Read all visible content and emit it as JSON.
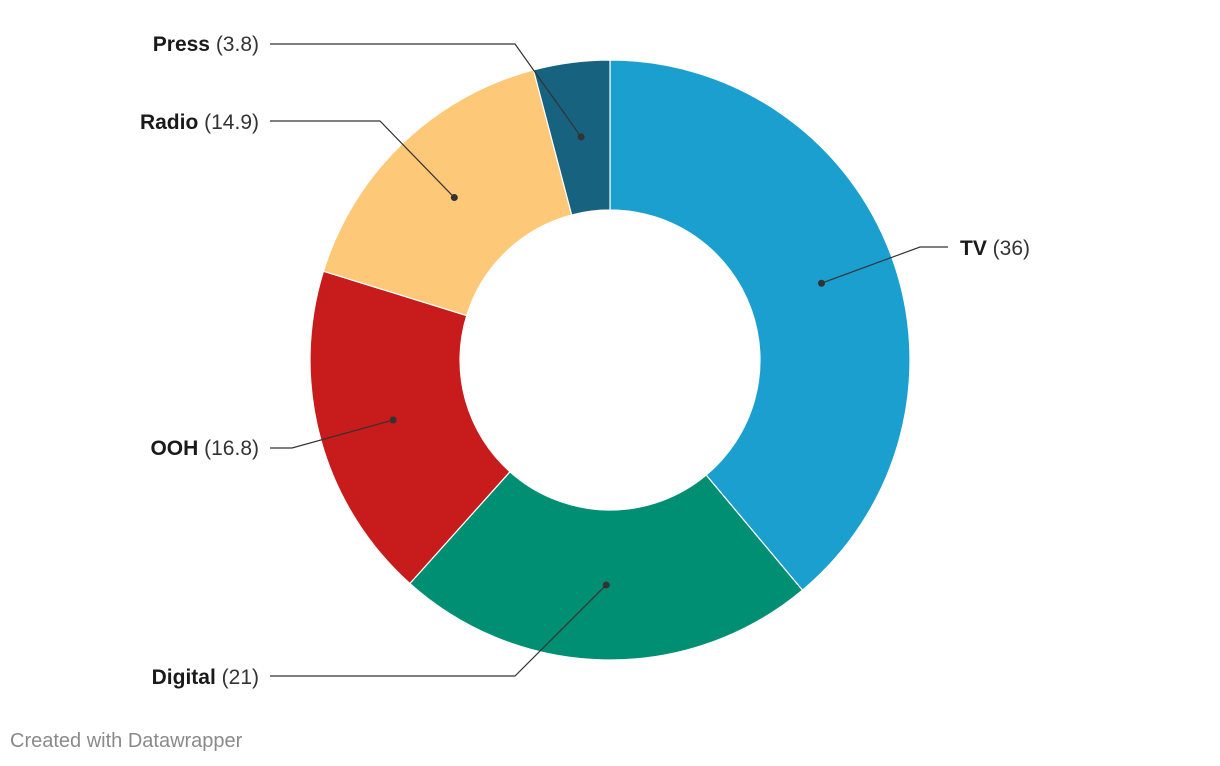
{
  "chart_data": {
    "type": "pie",
    "variant": "donut",
    "slices": [
      {
        "label": "TV",
        "value": 36,
        "color": "#1a9fcf"
      },
      {
        "label": "Digital",
        "value": 21,
        "color": "#008f72"
      },
      {
        "label": "OOH",
        "value": 16.8,
        "color": "#c81b1c"
      },
      {
        "label": "Radio",
        "value": 14.9,
        "color": "#fdc878"
      },
      {
        "label": "Press",
        "value": 3.8,
        "color": "#16627f"
      }
    ],
    "value_labels": [
      "(36)",
      "(21)",
      "(16.8)",
      "(14.9)",
      "(3.8)"
    ]
  },
  "footer": {
    "credit": "Created with Datawrapper"
  }
}
